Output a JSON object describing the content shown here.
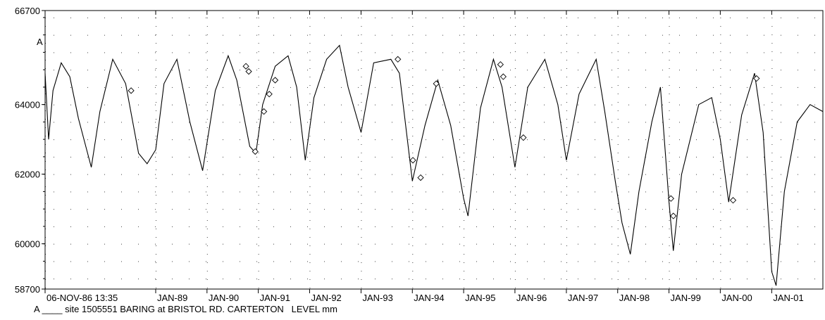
{
  "chart_data": {
    "type": "line",
    "title": "",
    "xlabel": "",
    "ylabel": "",
    "ylim": [
      58700,
      66700
    ],
    "y_ticks": [
      66700,
      64000,
      62000,
      60000,
      58700
    ],
    "x_start_label": "06-NOV-86 13:35",
    "x_range": [
      "1986-11-06",
      "2001-12-31"
    ],
    "x_ticks": [
      "JAN-89",
      "JAN-90",
      "JAN-91",
      "JAN-92",
      "JAN-93",
      "JAN-94",
      "JAN-95",
      "JAN-96",
      "JAN-97",
      "JAN-98",
      "JAN-99",
      "JAN-00",
      "JAN-01"
    ],
    "grid": "dotted",
    "series": [
      {
        "name": "site 1505551 BARING at BRISTOL RD. CARTERTON   LEVEL mm",
        "marker_label": "A",
        "color": "#000000",
        "points": [
          [
            "1986-11-06",
            64900
          ],
          [
            "1986-12-01",
            63000
          ],
          [
            "1987-01-01",
            64400
          ],
          [
            "1987-03-01",
            65200
          ],
          [
            "1987-05-01",
            64800
          ],
          [
            "1987-07-01",
            63600
          ],
          [
            "1987-10-01",
            62200
          ],
          [
            "1987-12-01",
            63800
          ],
          [
            "1988-03-01",
            65300
          ],
          [
            "1988-06-01",
            64600
          ],
          [
            "1988-09-01",
            62600
          ],
          [
            "1988-11-01",
            62300
          ],
          [
            "1989-01-01",
            62700
          ],
          [
            "1989-03-01",
            64600
          ],
          [
            "1989-06-01",
            65300
          ],
          [
            "1989-09-01",
            63500
          ],
          [
            "1989-12-01",
            62100
          ],
          [
            "1990-03-01",
            64400
          ],
          [
            "1990-06-01",
            65400
          ],
          [
            "1990-08-01",
            64700
          ],
          [
            "1990-11-01",
            62800
          ],
          [
            "1990-12-15",
            62600
          ],
          [
            "1991-02-01",
            64000
          ],
          [
            "1991-05-01",
            65100
          ],
          [
            "1991-08-01",
            65400
          ],
          [
            "1991-10-01",
            64500
          ],
          [
            "1991-12-01",
            62400
          ],
          [
            "1992-02-01",
            64200
          ],
          [
            "1992-05-01",
            65300
          ],
          [
            "1992-08-01",
            65700
          ],
          [
            "1992-10-01",
            64500
          ],
          [
            "1993-01-01",
            63200
          ],
          [
            "1993-04-01",
            65200
          ],
          [
            "1993-08-01",
            65300
          ],
          [
            "1993-10-01",
            64900
          ],
          [
            "1994-01-01",
            61800
          ],
          [
            "1994-04-01",
            63400
          ],
          [
            "1994-07-01",
            64700
          ],
          [
            "1994-10-01",
            63400
          ],
          [
            "1995-01-01",
            61300
          ],
          [
            "1995-02-01",
            60800
          ],
          [
            "1995-05-01",
            63900
          ],
          [
            "1995-08-01",
            65300
          ],
          [
            "1995-10-01",
            64500
          ],
          [
            "1996-01-01",
            62200
          ],
          [
            "1996-04-01",
            64500
          ],
          [
            "1996-08-01",
            65300
          ],
          [
            "1996-11-01",
            64000
          ],
          [
            "1997-01-01",
            62400
          ],
          [
            "1997-04-01",
            64300
          ],
          [
            "1997-08-01",
            65300
          ],
          [
            "1997-10-01",
            63800
          ],
          [
            "1997-12-15",
            61800
          ],
          [
            "1998-02-01",
            60600
          ],
          [
            "1998-04-01",
            59700
          ],
          [
            "1998-06-01",
            61500
          ],
          [
            "1998-09-01",
            63500
          ],
          [
            "1998-11-01",
            64500
          ],
          [
            "1999-01-01",
            61200
          ],
          [
            "1999-02-01",
            59800
          ],
          [
            "1999-04-01",
            62000
          ],
          [
            "1999-08-01",
            64000
          ],
          [
            "1999-11-01",
            64200
          ],
          [
            "2000-01-01",
            63000
          ],
          [
            "2000-03-01",
            61200
          ],
          [
            "2000-06-01",
            63700
          ],
          [
            "2000-09-01",
            64900
          ],
          [
            "2000-11-01",
            63200
          ],
          [
            "2001-01-01",
            59200
          ],
          [
            "2001-02-01",
            58800
          ],
          [
            "2001-04-01",
            61500
          ],
          [
            "2001-07-01",
            63500
          ],
          [
            "2001-10-01",
            64000
          ],
          [
            "2001-12-31",
            63800
          ]
        ],
        "markers": [
          [
            "1988-07-10",
            64400
          ],
          [
            "1990-10-05",
            65100
          ],
          [
            "1990-10-25",
            64950
          ],
          [
            "1990-12-10",
            62650
          ],
          [
            "1991-02-10",
            63800
          ],
          [
            "1991-03-20",
            64300
          ],
          [
            "1991-05-01",
            64700
          ],
          [
            "1993-09-20",
            65300
          ],
          [
            "1994-01-05",
            62400
          ],
          [
            "1994-03-01",
            61900
          ],
          [
            "1994-06-20",
            64600
          ],
          [
            "1995-09-20",
            65150
          ],
          [
            "1995-10-10",
            64800
          ],
          [
            "1996-03-01",
            63050
          ],
          [
            "1999-01-15",
            61300
          ],
          [
            "1999-02-01",
            60800
          ],
          [
            "2000-04-01",
            61250
          ],
          [
            "2000-09-15",
            64750
          ]
        ]
      }
    ],
    "legend": {
      "marker": "A",
      "line": "____",
      "text": "site 1505551 BARING at BRISTOL RD. CARTERTON   LEVEL mm"
    }
  }
}
